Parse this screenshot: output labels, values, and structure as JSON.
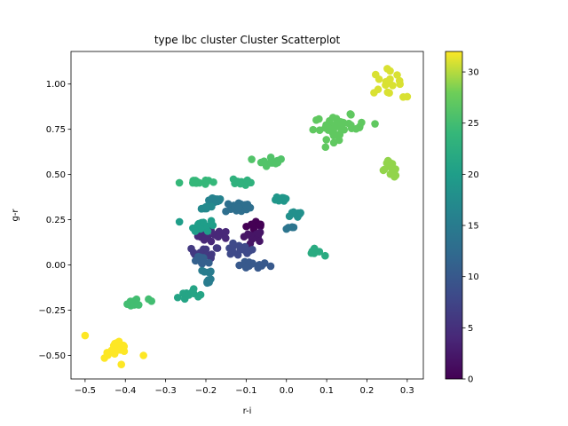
{
  "chart_data": {
    "type": "scatter",
    "title": "type lbc cluster Cluster Scatterplot",
    "xlabel": "r-i",
    "ylabel": "g-r",
    "xlim": [
      -0.535,
      0.34
    ],
    "ylim": [
      -0.63,
      1.18
    ],
    "xticks": [
      -0.5,
      -0.4,
      -0.3,
      -0.2,
      -0.1,
      0.0,
      0.1,
      0.2,
      0.3
    ],
    "xtick_labels": [
      "−0.5",
      "−0.4",
      "−0.3",
      "−0.2",
      "−0.1",
      "0.0",
      "0.1",
      "0.2",
      "0.3"
    ],
    "yticks": [
      -0.5,
      -0.25,
      0.0,
      0.25,
      0.5,
      0.75,
      1.0
    ],
    "ytick_labels": [
      "−0.50",
      "−0.25",
      "0.00",
      "0.25",
      "0.50",
      "0.75",
      "1.00"
    ],
    "grid": false,
    "colormap": "viridis",
    "colorbar": {
      "range": [
        0,
        32
      ],
      "ticks": [
        0,
        5,
        10,
        15,
        20,
        25,
        30
      ],
      "tick_labels": [
        "0",
        "5",
        "10",
        "15",
        "20",
        "25",
        "30"
      ]
    },
    "clusters": [
      {
        "value": 0,
        "center": [
          -0.07,
          0.22
        ],
        "spread": [
          0.018,
          0.018
        ],
        "n": 9
      },
      {
        "value": 2,
        "center": [
          -0.085,
          0.16
        ],
        "spread": [
          0.02,
          0.02
        ],
        "n": 12
      },
      {
        "value": 4,
        "center": [
          -0.18,
          0.16
        ],
        "spread": [
          0.025,
          0.02
        ],
        "n": 20
      },
      {
        "value": 6,
        "center": [
          -0.2,
          0.07
        ],
        "spread": [
          0.022,
          0.02
        ],
        "n": 16
      },
      {
        "value": 8,
        "center": [
          -0.12,
          0.08
        ],
        "spread": [
          0.025,
          0.02
        ],
        "n": 16
      },
      {
        "value": 10,
        "center": [
          -0.09,
          0.0
        ],
        "spread": [
          0.03,
          0.015
        ],
        "n": 16
      },
      {
        "value": 11,
        "center": [
          -0.205,
          0.02
        ],
        "spread": [
          0.015,
          0.015
        ],
        "n": 10
      },
      {
        "value": 13,
        "center": [
          -0.12,
          0.32
        ],
        "spread": [
          0.02,
          0.02
        ],
        "n": 16
      },
      {
        "value": 14,
        "center": [
          0.01,
          0.21
        ],
        "spread": [
          0.008,
          0.01
        ],
        "n": 5
      },
      {
        "value": 15,
        "center": [
          -0.195,
          -0.04
        ],
        "spread": [
          0.008,
          0.01
        ],
        "n": 5
      },
      {
        "value": 15,
        "center": [
          -0.2,
          -0.09
        ],
        "spread": [
          0.01,
          0.01
        ],
        "n": 6
      },
      {
        "value": 16,
        "center": [
          -0.18,
          0.36
        ],
        "spread": [
          0.015,
          0.01
        ],
        "n": 10
      },
      {
        "value": 17,
        "center": [
          -0.2,
          0.32
        ],
        "spread": [
          0.015,
          0.01
        ],
        "n": 8
      },
      {
        "value": 18,
        "center": [
          0.03,
          0.28
        ],
        "spread": [
          0.02,
          0.015
        ],
        "n": 10
      },
      {
        "value": 19,
        "center": [
          -0.01,
          0.37
        ],
        "spread": [
          0.01,
          0.015
        ],
        "n": 8
      },
      {
        "value": 20,
        "center": [
          -0.21,
          0.22
        ],
        "spread": [
          0.02,
          0.02
        ],
        "n": 18
      },
      {
        "value": 21,
        "center": [
          -0.24,
          -0.16
        ],
        "spread": [
          0.015,
          0.015
        ],
        "n": 10
      },
      {
        "value": 22,
        "center": [
          0.07,
          0.07
        ],
        "spread": [
          0.012,
          0.012
        ],
        "n": 8
      },
      {
        "value": 23,
        "center": [
          -0.11,
          0.46
        ],
        "spread": [
          0.015,
          0.015
        ],
        "n": 10
      },
      {
        "value": 24,
        "center": [
          -0.23,
          0.46
        ],
        "spread": [
          0.022,
          0.01
        ],
        "n": 14
      },
      {
        "value": 25,
        "center": [
          -0.375,
          -0.21
        ],
        "spread": [
          0.02,
          0.015
        ],
        "n": 12
      },
      {
        "value": 26,
        "center": [
          -0.04,
          0.58
        ],
        "spread": [
          0.02,
          0.02
        ],
        "n": 12
      },
      {
        "value": 27,
        "center": [
          0.13,
          0.76
        ],
        "spread": [
          0.04,
          0.04
        ],
        "n": 40
      },
      {
        "value": 29,
        "center": [
          0.26,
          0.53
        ],
        "spread": [
          0.015,
          0.03
        ],
        "n": 14
      },
      {
        "value": 31,
        "center": [
          0.245,
          1.01
        ],
        "spread": [
          0.025,
          0.04
        ],
        "n": 16
      },
      {
        "value": 32,
        "center": [
          -0.42,
          -0.47
        ],
        "spread": [
          0.02,
          0.03
        ],
        "n": 20
      }
    ],
    "points_extra": [
      {
        "x": -0.5,
        "y": -0.39,
        "value": 32
      },
      {
        "x": -0.355,
        "y": -0.5,
        "value": 32
      },
      {
        "x": -0.41,
        "y": -0.55,
        "value": 32
      },
      {
        "x": 0.3,
        "y": 0.93,
        "value": 31
      },
      {
        "x": 0.275,
        "y": 1.05,
        "value": 31
      },
      {
        "x": 0.22,
        "y": 0.78,
        "value": 27
      },
      {
        "x": -0.335,
        "y": -0.2,
        "value": 25
      },
      {
        "x": -0.27,
        "y": -0.18,
        "value": 21
      }
    ]
  }
}
